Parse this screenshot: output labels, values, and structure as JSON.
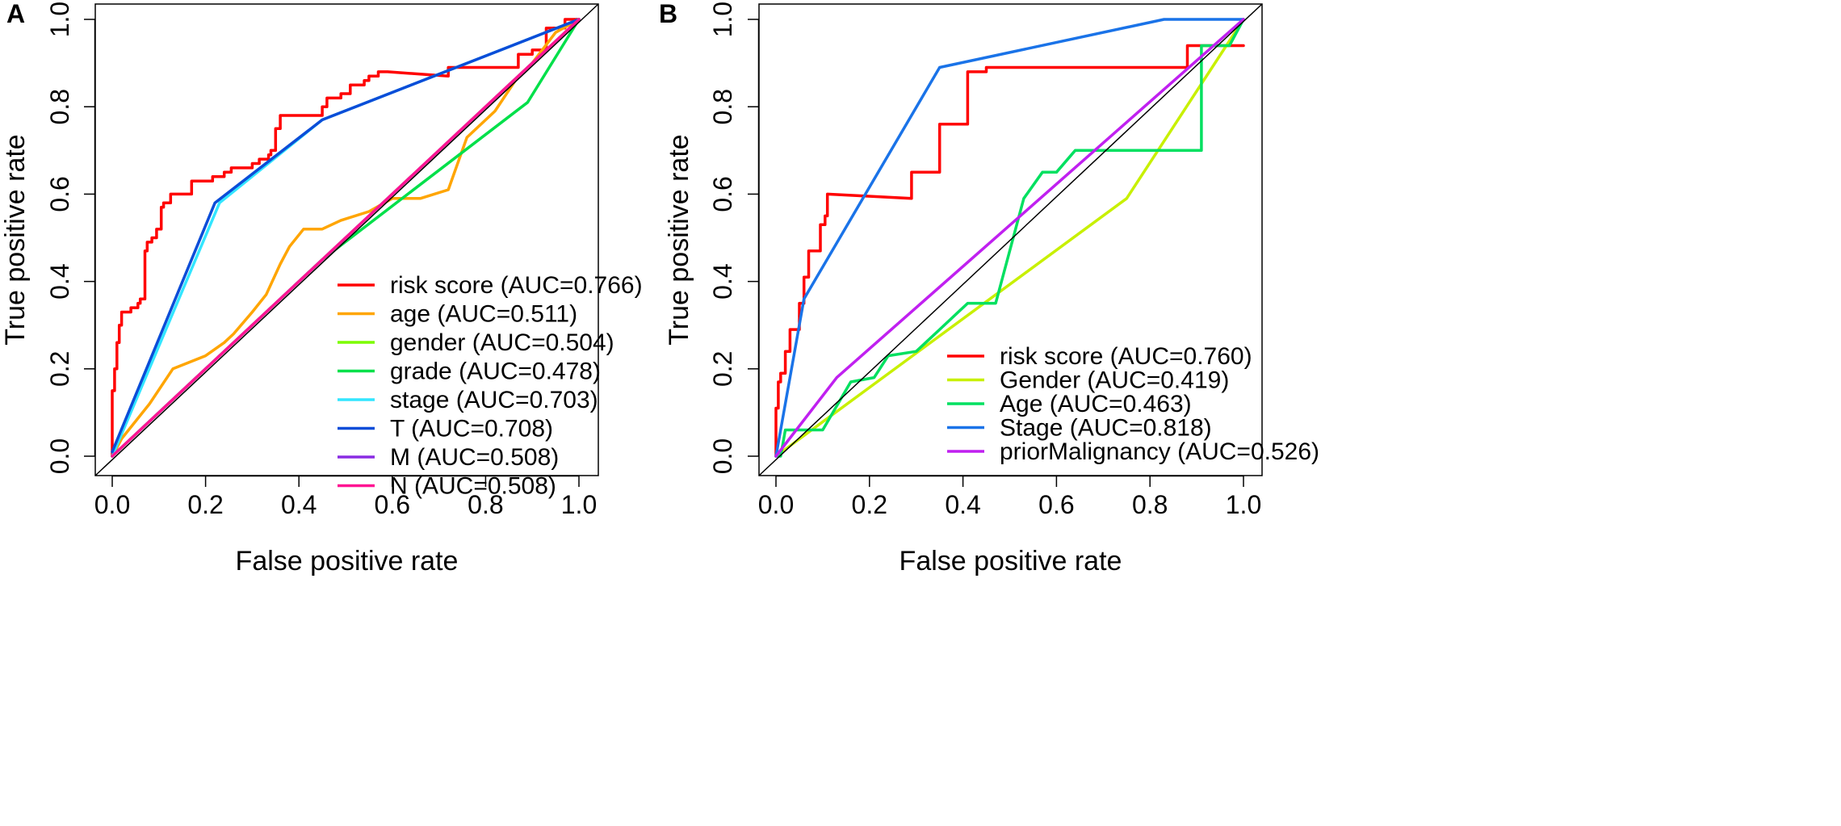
{
  "chart_data": [
    {
      "type": "line",
      "panel_label": "A",
      "xlabel": "False positive rate",
      "ylabel": "True positive rate",
      "xlim": [
        0,
        1
      ],
      "ylim": [
        0,
        1
      ],
      "x_ticks": [
        "0.0",
        "0.2",
        "0.4",
        "0.6",
        "0.8",
        "1.0"
      ],
      "y_ticks": [
        "0.0",
        "0.2",
        "0.4",
        "0.6",
        "0.8",
        "1.0"
      ],
      "grid": false,
      "legend_position": "bottom-right",
      "diagonal": true,
      "series": [
        {
          "name": "risk score (AUC=0.766)",
          "color": "#ff0000",
          "x": [
            0,
            0,
            0.005,
            0.005,
            0.01,
            0.01,
            0.015,
            0.015,
            0.02,
            0.02,
            0.04,
            0.04,
            0.055,
            0.055,
            0.06,
            0.06,
            0.07,
            0.07,
            0.075,
            0.075,
            0.085,
            0.085,
            0.095,
            0.095,
            0.105,
            0.105,
            0.11,
            0.11,
            0.125,
            0.125,
            0.17,
            0.17,
            0.215,
            0.215,
            0.24,
            0.24,
            0.255,
            0.255,
            0.3,
            0.3,
            0.315,
            0.315,
            0.335,
            0.335,
            0.34,
            0.34,
            0.35,
            0.35,
            0.36,
            0.36,
            0.45,
            0.45,
            0.46,
            0.46,
            0.49,
            0.49,
            0.51,
            0.51,
            0.54,
            0.54,
            0.55,
            0.55,
            0.57,
            0.57,
            0.59,
            0.72,
            0.72,
            0.87,
            0.87,
            0.9,
            0.9,
            0.93,
            0.93,
            0.97,
            0.97,
            1.0
          ],
          "y": [
            0,
            0.15,
            0.15,
            0.2,
            0.2,
            0.26,
            0.26,
            0.3,
            0.3,
            0.33,
            0.33,
            0.34,
            0.34,
            0.35,
            0.35,
            0.36,
            0.36,
            0.47,
            0.47,
            0.49,
            0.49,
            0.5,
            0.5,
            0.52,
            0.52,
            0.57,
            0.57,
            0.58,
            0.58,
            0.6,
            0.6,
            0.63,
            0.63,
            0.64,
            0.64,
            0.65,
            0.65,
            0.66,
            0.66,
            0.67,
            0.67,
            0.68,
            0.68,
            0.69,
            0.69,
            0.7,
            0.7,
            0.75,
            0.75,
            0.78,
            0.78,
            0.8,
            0.8,
            0.82,
            0.82,
            0.83,
            0.83,
            0.85,
            0.85,
            0.86,
            0.86,
            0.87,
            0.87,
            0.88,
            0.88,
            0.87,
            0.89,
            0.89,
            0.92,
            0.92,
            0.93,
            0.93,
            0.98,
            0.98,
            1.0,
            1.0
          ]
        },
        {
          "name": "age (AUC=0.511)",
          "color": "#ffa500",
          "x": [
            0,
            0.02,
            0.08,
            0.13,
            0.2,
            0.24,
            0.26,
            0.3,
            0.33,
            0.36,
            0.38,
            0.41,
            0.45,
            0.49,
            0.55,
            0.6,
            0.64,
            0.66,
            0.72,
            0.76,
            0.82,
            0.87,
            0.9,
            0.95,
            1.0
          ],
          "y": [
            0,
            0.04,
            0.12,
            0.2,
            0.23,
            0.26,
            0.28,
            0.33,
            0.37,
            0.44,
            0.48,
            0.52,
            0.52,
            0.54,
            0.56,
            0.59,
            0.59,
            0.59,
            0.61,
            0.73,
            0.79,
            0.87,
            0.9,
            0.97,
            1.0
          ]
        },
        {
          "name": "gender (AUC=0.504)",
          "color": "#7cfc00",
          "x": [
            0,
            1
          ],
          "y": [
            0,
            1
          ]
        },
        {
          "name": "grade (AUC=0.478)",
          "color": "#00e04a",
          "x": [
            0,
            0.45,
            0.89,
            1.0
          ],
          "y": [
            0,
            0.45,
            0.81,
            1.0
          ]
        },
        {
          "name": "stage (AUC=0.703)",
          "color": "#33e6ff",
          "x": [
            0,
            0.23,
            0.45,
            1.0
          ],
          "y": [
            0,
            0.58,
            0.77,
            1.0
          ]
        },
        {
          "name": "T (AUC=0.708)",
          "color": "#0b4dd8",
          "x": [
            0,
            0.22,
            0.45,
            1.0
          ],
          "y": [
            0.01,
            0.58,
            0.77,
            1.0
          ]
        },
        {
          "name": "M (AUC=0.508)",
          "color": "#8a2be2",
          "x": [
            0,
            1
          ],
          "y": [
            0,
            1
          ]
        },
        {
          "name": "N (AUC=0.508)",
          "color": "#ff1493",
          "x": [
            0,
            1
          ],
          "y": [
            0,
            1
          ]
        }
      ]
    },
    {
      "type": "line",
      "panel_label": "B",
      "xlabel": "False positive rate",
      "ylabel": "True positive rate",
      "xlim": [
        0,
        1
      ],
      "ylim": [
        0,
        1
      ],
      "x_ticks": [
        "0.0",
        "0.2",
        "0.4",
        "0.6",
        "0.8",
        "1.0"
      ],
      "y_ticks": [
        "0.0",
        "0.2",
        "0.4",
        "0.6",
        "0.8",
        "1.0"
      ],
      "grid": false,
      "legend_position": "bottom-right",
      "diagonal": true,
      "series": [
        {
          "name": "risk score (AUC=0.760)",
          "color": "#ff0000",
          "x": [
            0,
            0,
            0.005,
            0.005,
            0.01,
            0.01,
            0.02,
            0.02,
            0.03,
            0.03,
            0.05,
            0.05,
            0.06,
            0.06,
            0.07,
            0.07,
            0.08,
            0.08,
            0.095,
            0.095,
            0.105,
            0.105,
            0.11,
            0.11,
            0.29,
            0.29,
            0.31,
            0.31,
            0.35,
            0.35,
            0.4,
            0.4,
            0.41,
            0.41,
            0.45,
            0.45,
            0.88,
            0.88,
            1.0
          ],
          "y": [
            0,
            0.11,
            0.11,
            0.17,
            0.17,
            0.19,
            0.19,
            0.24,
            0.24,
            0.29,
            0.29,
            0.35,
            0.35,
            0.41,
            0.41,
            0.47,
            0.47,
            0.47,
            0.47,
            0.53,
            0.53,
            0.55,
            0.55,
            0.6,
            0.59,
            0.65,
            0.65,
            0.65,
            0.65,
            0.76,
            0.76,
            0.76,
            0.76,
            0.88,
            0.88,
            0.89,
            0.89,
            0.94,
            0.94
          ]
        },
        {
          "name": "Gender (AUC=0.419)",
          "color": "#c8f000",
          "x": [
            0,
            0.75,
            1.0
          ],
          "y": [
            0,
            0.59,
            1.0
          ]
        },
        {
          "name": "Age (AUC=0.463)",
          "color": "#00e060",
          "x": [
            0,
            0.01,
            0.02,
            0.05,
            0.1,
            0.16,
            0.21,
            0.24,
            0.3,
            0.35,
            0.41,
            0.47,
            0.5,
            0.53,
            0.57,
            0.6,
            0.64,
            0.91,
            0.91,
            0.97,
            0.97,
            1.0
          ],
          "y": [
            0,
            0,
            0.06,
            0.06,
            0.06,
            0.17,
            0.18,
            0.23,
            0.24,
            0.29,
            0.35,
            0.35,
            0.47,
            0.59,
            0.65,
            0.65,
            0.7,
            0.7,
            0.94,
            0.94,
            0.94,
            1.0
          ]
        },
        {
          "name": "Stage (AUC=0.818)",
          "color": "#1a73e8",
          "x": [
            0,
            0.06,
            0.35,
            0.83,
            1.0
          ],
          "y": [
            0,
            0.36,
            0.89,
            1.0,
            1.0
          ]
        },
        {
          "name": "priorMalignancy (AUC=0.526)",
          "color": "#c020f0",
          "x": [
            0,
            0.13,
            1.0
          ],
          "y": [
            0,
            0.18,
            1.0
          ]
        }
      ]
    }
  ]
}
